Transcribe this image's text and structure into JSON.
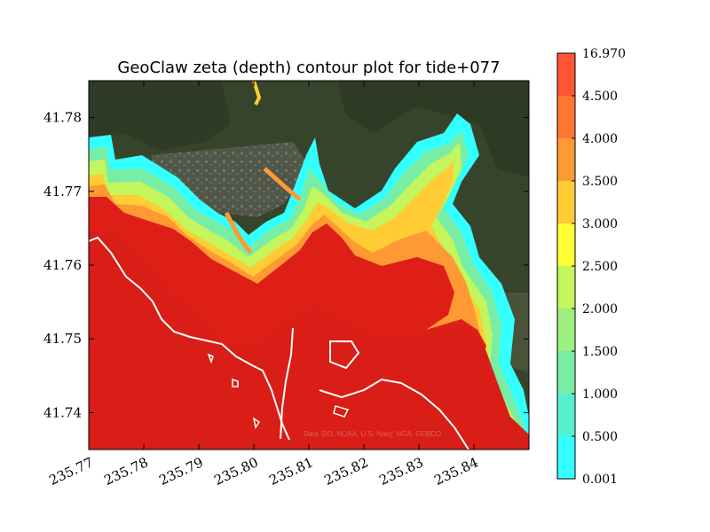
{
  "chart_data": {
    "type": "heatmap",
    "title": "GeoClaw zeta (depth) contour plot for tide+077",
    "xlabel": "",
    "ylabel": "",
    "xlim": [
      235.77,
      235.85
    ],
    "ylim": [
      41.735,
      41.785
    ],
    "x_ticks": [
      "235.77",
      "235.78",
      "235.79",
      "235.80",
      "235.81",
      "235.82",
      "235.83",
      "235.84"
    ],
    "y_ticks": [
      "41.74",
      "41.75",
      "41.76",
      "41.77",
      "41.78"
    ],
    "colorbar": {
      "levels": [
        "0.001",
        "0.500",
        "1.000",
        "1.500",
        "2.000",
        "2.500",
        "3.000",
        "3.500",
        "4.000",
        "4.500",
        "16.970"
      ],
      "colors": [
        "#33ffff",
        "#55f0cf",
        "#78eda6",
        "#9cf07e",
        "#c4f55c",
        "#ffff33",
        "#ffcc33",
        "#ff9933",
        "#ff7733",
        "#ff5533"
      ]
    },
    "attribution": "Data SIO, NOAA, U.S. Navy, NGA, GEBCO",
    "colors": {
      "flood_max": "#dd1f17",
      "background_imagery": "#3d4a30",
      "shoreline": "#ffffff"
    }
  }
}
